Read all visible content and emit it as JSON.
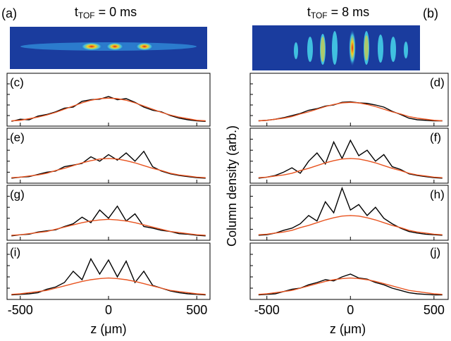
{
  "images": [
    {
      "label": "(a)",
      "title": {
        "main": "t",
        "sub": "TOF",
        "rest": " = 0 ms"
      }
    },
    {
      "label": "(b)",
      "title": {
        "main": "t",
        "sub": "TOF",
        "rest": " = 8 ms"
      }
    }
  ],
  "ylabel": "Column density (arb.)",
  "chart_data": [
    {
      "type": "line",
      "title": "(c)",
      "xlim": [
        -575,
        575
      ],
      "ylim": [
        0,
        1
      ],
      "xticks": [
        -500,
        0,
        500
      ],
      "yticks": [
        0.2,
        0.4,
        0.6,
        0.8
      ],
      "x": [
        -550,
        -500,
        -450,
        -400,
        -350,
        -300,
        -250,
        -200,
        -150,
        -100,
        -50,
        0,
        50,
        100,
        150,
        200,
        250,
        300,
        350,
        400,
        450,
        500,
        550
      ],
      "series": [
        {
          "color": "#000000",
          "values": [
            0.09,
            0.13,
            0.12,
            0.19,
            0.22,
            0.27,
            0.34,
            0.36,
            0.47,
            0.5,
            0.51,
            0.56,
            0.5,
            0.52,
            0.45,
            0.36,
            0.3,
            0.27,
            0.2,
            0.15,
            0.12,
            0.1,
            0.09
          ]
        },
        {
          "color": "#e8531f",
          "values": [
            0.1,
            0.11,
            0.14,
            0.17,
            0.21,
            0.26,
            0.32,
            0.38,
            0.44,
            0.49,
            0.52,
            0.53,
            0.52,
            0.49,
            0.44,
            0.38,
            0.32,
            0.26,
            0.21,
            0.17,
            0.14,
            0.11,
            0.1
          ]
        }
      ]
    },
    {
      "type": "line",
      "title": "(d)",
      "xlim": [
        -600,
        585
      ],
      "ylim": [
        0,
        1
      ],
      "xticks": [
        -500,
        0,
        500
      ],
      "yticks": [
        0.2,
        0.4,
        0.6,
        0.8
      ],
      "x": [
        -550,
        -500,
        -450,
        -400,
        -350,
        -300,
        -250,
        -200,
        -150,
        -100,
        -50,
        0,
        50,
        100,
        150,
        200,
        250,
        300,
        350,
        400,
        450,
        500,
        550
      ],
      "series": [
        {
          "color": "#000000",
          "values": [
            0.1,
            0.11,
            0.13,
            0.16,
            0.2,
            0.24,
            0.3,
            0.33,
            0.38,
            0.4,
            0.45,
            0.46,
            0.44,
            0.43,
            0.4,
            0.36,
            0.28,
            0.22,
            0.15,
            0.12,
            0.11,
            0.1,
            0.1
          ]
        },
        {
          "color": "#e8531f",
          "values": [
            0.1,
            0.11,
            0.13,
            0.15,
            0.18,
            0.23,
            0.27,
            0.32,
            0.37,
            0.41,
            0.44,
            0.45,
            0.44,
            0.41,
            0.37,
            0.32,
            0.27,
            0.23,
            0.18,
            0.15,
            0.13,
            0.11,
            0.1
          ]
        }
      ]
    },
    {
      "type": "line",
      "title": "(e)",
      "xlim": [
        -575,
        575
      ],
      "ylim": [
        0,
        1
      ],
      "xticks": [
        -500,
        0,
        500
      ],
      "yticks": [
        0.2,
        0.4,
        0.6,
        0.8
      ],
      "x": [
        -550,
        -500,
        -450,
        -400,
        -350,
        -300,
        -250,
        -200,
        -150,
        -100,
        -50,
        0,
        50,
        100,
        150,
        200,
        250,
        300,
        350,
        400,
        450,
        500,
        550
      ],
      "series": [
        {
          "color": "#000000",
          "values": [
            0.09,
            0.11,
            0.12,
            0.16,
            0.2,
            0.22,
            0.3,
            0.33,
            0.36,
            0.48,
            0.4,
            0.52,
            0.42,
            0.55,
            0.4,
            0.58,
            0.3,
            0.22,
            0.17,
            0.14,
            0.12,
            0.1,
            0.09
          ]
        },
        {
          "color": "#e8531f",
          "values": [
            0.1,
            0.11,
            0.13,
            0.15,
            0.18,
            0.23,
            0.27,
            0.32,
            0.37,
            0.41,
            0.44,
            0.45,
            0.44,
            0.41,
            0.37,
            0.32,
            0.27,
            0.23,
            0.18,
            0.15,
            0.13,
            0.11,
            0.1
          ]
        }
      ]
    },
    {
      "type": "line",
      "title": "(f)",
      "xlim": [
        -600,
        585
      ],
      "ylim": [
        0,
        1
      ],
      "xticks": [
        -500,
        0,
        500
      ],
      "yticks": [
        0.2,
        0.4,
        0.6,
        0.8
      ],
      "x": [
        -550,
        -500,
        -450,
        -400,
        -350,
        -300,
        -250,
        -200,
        -150,
        -100,
        -50,
        0,
        50,
        100,
        150,
        200,
        250,
        300,
        350,
        400,
        450,
        500,
        550
      ],
      "series": [
        {
          "color": "#000000",
          "values": [
            0.09,
            0.11,
            0.14,
            0.2,
            0.28,
            0.18,
            0.4,
            0.55,
            0.35,
            0.75,
            0.45,
            0.78,
            0.5,
            0.6,
            0.4,
            0.52,
            0.3,
            0.25,
            0.17,
            0.14,
            0.12,
            0.1,
            0.09
          ]
        },
        {
          "color": "#e8531f",
          "values": [
            0.1,
            0.11,
            0.13,
            0.15,
            0.18,
            0.23,
            0.27,
            0.32,
            0.37,
            0.41,
            0.44,
            0.45,
            0.44,
            0.41,
            0.37,
            0.32,
            0.27,
            0.23,
            0.18,
            0.15,
            0.13,
            0.11,
            0.1
          ]
        }
      ]
    },
    {
      "type": "line",
      "title": "(g)",
      "xlim": [
        -575,
        575
      ],
      "ylim": [
        0,
        1
      ],
      "xticks": [
        -500,
        0,
        500
      ],
      "yticks": [
        0.2,
        0.4,
        0.6,
        0.8
      ],
      "x": [
        -550,
        -500,
        -450,
        -400,
        -350,
        -300,
        -250,
        -200,
        -150,
        -100,
        -50,
        0,
        50,
        100,
        150,
        200,
        250,
        300,
        350,
        400,
        450,
        500,
        550
      ],
      "series": [
        {
          "color": "#000000",
          "values": [
            0.08,
            0.1,
            0.11,
            0.15,
            0.17,
            0.19,
            0.25,
            0.3,
            0.42,
            0.32,
            0.55,
            0.4,
            0.62,
            0.35,
            0.48,
            0.25,
            0.22,
            0.18,
            0.16,
            0.12,
            0.11,
            0.09,
            0.08
          ]
        },
        {
          "color": "#e8531f",
          "values": [
            0.09,
            0.1,
            0.12,
            0.14,
            0.16,
            0.2,
            0.24,
            0.28,
            0.32,
            0.35,
            0.37,
            0.38,
            0.37,
            0.35,
            0.32,
            0.28,
            0.24,
            0.2,
            0.16,
            0.14,
            0.12,
            0.1,
            0.09
          ]
        }
      ]
    },
    {
      "type": "line",
      "title": "(h)",
      "xlim": [
        -600,
        585
      ],
      "ylim": [
        0,
        1
      ],
      "xticks": [
        -500,
        0,
        500
      ],
      "yticks": [
        0.2,
        0.4,
        0.6,
        0.8
      ],
      "x": [
        -550,
        -500,
        -450,
        -400,
        -350,
        -300,
        -250,
        -200,
        -150,
        -100,
        -50,
        0,
        50,
        100,
        150,
        200,
        250,
        300,
        350,
        400,
        450,
        500,
        550
      ],
      "series": [
        {
          "color": "#000000",
          "values": [
            0.09,
            0.1,
            0.13,
            0.18,
            0.22,
            0.3,
            0.45,
            0.35,
            0.7,
            0.5,
            0.95,
            0.55,
            0.65,
            0.45,
            0.6,
            0.4,
            0.3,
            0.22,
            0.16,
            0.13,
            0.11,
            0.1,
            0.09
          ]
        },
        {
          "color": "#e8531f",
          "values": [
            0.1,
            0.11,
            0.13,
            0.15,
            0.18,
            0.23,
            0.27,
            0.32,
            0.37,
            0.41,
            0.44,
            0.45,
            0.44,
            0.41,
            0.37,
            0.32,
            0.27,
            0.23,
            0.18,
            0.15,
            0.13,
            0.11,
            0.1
          ]
        }
      ]
    },
    {
      "type": "line",
      "title": "(i)",
      "xlim": [
        -575,
        575
      ],
      "ylim": [
        0,
        1
      ],
      "xticks": [
        -500,
        0,
        500
      ],
      "yticks": [
        0.2,
        0.4,
        0.6,
        0.8
      ],
      "xlabel": "z  (μm)",
      "x": [
        -550,
        -500,
        -450,
        -400,
        -350,
        -300,
        -250,
        -200,
        -150,
        -100,
        -50,
        0,
        50,
        100,
        150,
        200,
        250,
        300,
        350,
        400,
        450,
        500,
        550
      ],
      "series": [
        {
          "color": "#000000",
          "values": [
            0.08,
            0.09,
            0.1,
            0.12,
            0.18,
            0.22,
            0.3,
            0.5,
            0.35,
            0.72,
            0.45,
            0.7,
            0.4,
            0.68,
            0.3,
            0.5,
            0.25,
            0.2,
            0.15,
            0.12,
            0.1,
            0.09,
            0.08
          ]
        },
        {
          "color": "#e8531f",
          "values": [
            0.09,
            0.1,
            0.12,
            0.14,
            0.16,
            0.2,
            0.24,
            0.28,
            0.32,
            0.35,
            0.37,
            0.38,
            0.37,
            0.35,
            0.32,
            0.28,
            0.24,
            0.2,
            0.16,
            0.14,
            0.12,
            0.1,
            0.09
          ]
        }
      ]
    },
    {
      "type": "line",
      "title": "(j)",
      "xlim": [
        -600,
        585
      ],
      "ylim": [
        0,
        1
      ],
      "xticks": [
        -500,
        0,
        500
      ],
      "yticks": [
        0.2,
        0.4,
        0.6,
        0.8
      ],
      "xlabel": "z  (μm)",
      "x": [
        -550,
        -500,
        -450,
        -400,
        -350,
        -300,
        -250,
        -200,
        -150,
        -100,
        -50,
        0,
        50,
        100,
        150,
        200,
        250,
        300,
        350,
        400,
        450,
        500,
        550
      ],
      "series": [
        {
          "color": "#000000",
          "values": [
            0.08,
            0.09,
            0.1,
            0.14,
            0.18,
            0.2,
            0.26,
            0.3,
            0.35,
            0.33,
            0.4,
            0.45,
            0.38,
            0.36,
            0.3,
            0.26,
            0.2,
            0.16,
            0.12,
            0.1,
            0.09,
            0.08,
            0.08
          ]
        },
        {
          "color": "#e8531f",
          "values": [
            0.09,
            0.1,
            0.12,
            0.14,
            0.16,
            0.2,
            0.24,
            0.28,
            0.32,
            0.35,
            0.37,
            0.38,
            0.37,
            0.35,
            0.32,
            0.28,
            0.24,
            0.2,
            0.16,
            0.14,
            0.12,
            0.1,
            0.09
          ]
        }
      ]
    }
  ]
}
